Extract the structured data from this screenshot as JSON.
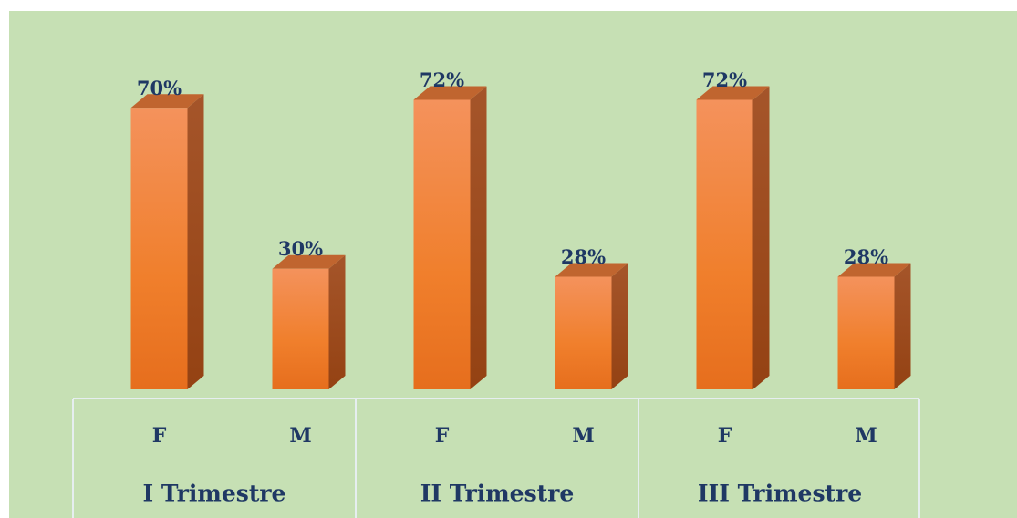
{
  "chart_data": {
    "type": "bar3d",
    "groups": [
      "I Trimestre",
      "II Trimestre",
      "III Trimestre"
    ],
    "categories": [
      "F",
      "M",
      "F",
      "M",
      "F",
      "M"
    ],
    "values": [
      70,
      30,
      72,
      28,
      72,
      28
    ],
    "value_labels": [
      "70%",
      "30%",
      "72%",
      "28%",
      "72%",
      "28%"
    ],
    "color": "#f07f2c"
  }
}
